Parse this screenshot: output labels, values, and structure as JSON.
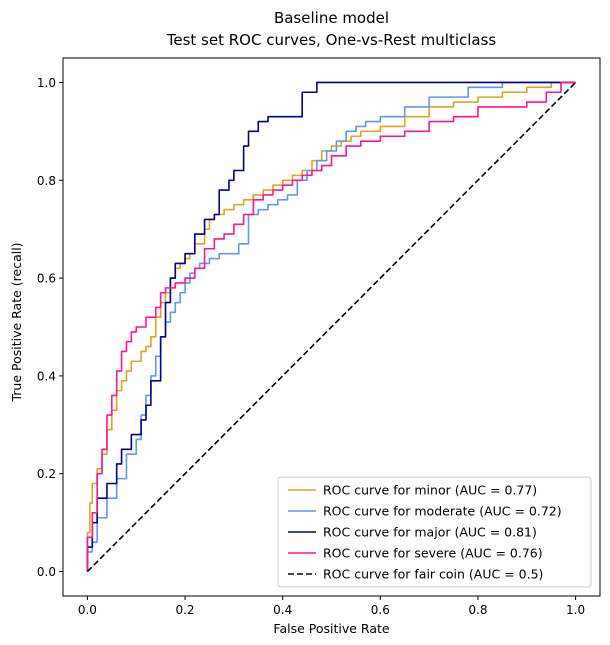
{
  "chart_data": {
    "type": "line",
    "title": "Baseline model",
    "subtitle": "Test set ROC curves, One-vs-Rest multiclass",
    "xlabel": "False Positive Rate",
    "ylabel": "True Positive Rate (recall)",
    "xlim": [
      -0.05,
      1.05
    ],
    "ylim": [
      -0.05,
      1.05
    ],
    "xticks": [
      0.0,
      0.2,
      0.4,
      0.6,
      0.8,
      1.0
    ],
    "yticks": [
      0.0,
      0.2,
      0.4,
      0.6,
      0.8,
      1.0
    ],
    "xtick_labels": [
      "0.0",
      "0.2",
      "0.4",
      "0.6",
      "0.8",
      "1.0"
    ],
    "ytick_labels": [
      "0.0",
      "0.2",
      "0.4",
      "0.6",
      "0.8",
      "1.0"
    ],
    "grid": false,
    "legend_position": "lower-right",
    "series": [
      {
        "name": "ROC curve for minor (AUC = 0.77)",
        "color": "#DAA520",
        "dash": "solid",
        "x": [
          0.0,
          0.0,
          0.005,
          0.005,
          0.01,
          0.01,
          0.02,
          0.02,
          0.03,
          0.03,
          0.04,
          0.04,
          0.05,
          0.05,
          0.06,
          0.06,
          0.07,
          0.07,
          0.08,
          0.08,
          0.09,
          0.09,
          0.1,
          0.1,
          0.11,
          0.11,
          0.12,
          0.12,
          0.13,
          0.13,
          0.14,
          0.14,
          0.15,
          0.15,
          0.16,
          0.16,
          0.17,
          0.17,
          0.18,
          0.18,
          0.19,
          0.19,
          0.2,
          0.2,
          0.21,
          0.21,
          0.22,
          0.22,
          0.24,
          0.24,
          0.25,
          0.25,
          0.26,
          0.26,
          0.28,
          0.28,
          0.3,
          0.3,
          0.32,
          0.32,
          0.34,
          0.34,
          0.36,
          0.36,
          0.38,
          0.38,
          0.4,
          0.4,
          0.42,
          0.42,
          0.44,
          0.44,
          0.46,
          0.46,
          0.48,
          0.48,
          0.5,
          0.5,
          0.52,
          0.52,
          0.54,
          0.54,
          0.56,
          0.56,
          0.58,
          0.58,
          0.6,
          0.6,
          0.65,
          0.65,
          0.7,
          0.7,
          0.75,
          0.75,
          0.8,
          0.8,
          0.85,
          0.85,
          0.9,
          0.9,
          0.95,
          0.95,
          1.0
        ],
        "y": [
          0.0,
          0.08,
          0.08,
          0.14,
          0.14,
          0.18,
          0.18,
          0.21,
          0.21,
          0.24,
          0.24,
          0.29,
          0.29,
          0.33,
          0.33,
          0.37,
          0.37,
          0.39,
          0.39,
          0.41,
          0.41,
          0.43,
          0.43,
          0.43,
          0.43,
          0.45,
          0.45,
          0.46,
          0.46,
          0.48,
          0.48,
          0.52,
          0.52,
          0.55,
          0.55,
          0.57,
          0.57,
          0.6,
          0.6,
          0.62,
          0.62,
          0.63,
          0.63,
          0.64,
          0.64,
          0.65,
          0.65,
          0.67,
          0.67,
          0.7,
          0.7,
          0.72,
          0.72,
          0.73,
          0.73,
          0.74,
          0.74,
          0.75,
          0.75,
          0.76,
          0.76,
          0.77,
          0.77,
          0.78,
          0.78,
          0.79,
          0.79,
          0.8,
          0.8,
          0.81,
          0.81,
          0.82,
          0.82,
          0.84,
          0.84,
          0.86,
          0.86,
          0.87,
          0.87,
          0.88,
          0.88,
          0.89,
          0.89,
          0.9,
          0.9,
          0.9,
          0.9,
          0.91,
          0.91,
          0.93,
          0.93,
          0.95,
          0.95,
          0.96,
          0.96,
          0.97,
          0.97,
          0.98,
          0.98,
          0.99,
          0.99,
          1.0,
          1.0
        ]
      },
      {
        "name": "ROC curve for moderate (AUC = 0.72)",
        "color": "#6495ED",
        "dash": "solid",
        "x": [
          0.0,
          0.0,
          0.01,
          0.01,
          0.02,
          0.02,
          0.04,
          0.04,
          0.06,
          0.06,
          0.08,
          0.08,
          0.1,
          0.1,
          0.11,
          0.11,
          0.12,
          0.12,
          0.13,
          0.13,
          0.14,
          0.14,
          0.15,
          0.15,
          0.16,
          0.16,
          0.17,
          0.17,
          0.18,
          0.18,
          0.19,
          0.19,
          0.2,
          0.2,
          0.21,
          0.21,
          0.22,
          0.22,
          0.23,
          0.23,
          0.25,
          0.25,
          0.27,
          0.27,
          0.29,
          0.29,
          0.31,
          0.31,
          0.33,
          0.33,
          0.35,
          0.35,
          0.37,
          0.37,
          0.39,
          0.39,
          0.41,
          0.41,
          0.43,
          0.43,
          0.45,
          0.45,
          0.47,
          0.47,
          0.49,
          0.49,
          0.51,
          0.51,
          0.53,
          0.53,
          0.55,
          0.55,
          0.57,
          0.57,
          0.6,
          0.6,
          0.65,
          0.65,
          0.7,
          0.7,
          0.78,
          0.78,
          0.85,
          0.85,
          0.92,
          0.92,
          1.0
        ],
        "y": [
          0.0,
          0.04,
          0.04,
          0.06,
          0.06,
          0.11,
          0.11,
          0.15,
          0.15,
          0.19,
          0.19,
          0.24,
          0.24,
          0.27,
          0.27,
          0.32,
          0.32,
          0.36,
          0.36,
          0.4,
          0.4,
          0.44,
          0.44,
          0.48,
          0.48,
          0.51,
          0.51,
          0.53,
          0.53,
          0.55,
          0.55,
          0.57,
          0.57,
          0.59,
          0.59,
          0.61,
          0.61,
          0.62,
          0.62,
          0.63,
          0.63,
          0.64,
          0.64,
          0.65,
          0.65,
          0.65,
          0.65,
          0.67,
          0.67,
          0.73,
          0.73,
          0.74,
          0.74,
          0.75,
          0.75,
          0.76,
          0.76,
          0.77,
          0.77,
          0.8,
          0.8,
          0.82,
          0.82,
          0.84,
          0.84,
          0.86,
          0.86,
          0.88,
          0.88,
          0.9,
          0.9,
          0.91,
          0.91,
          0.92,
          0.92,
          0.93,
          0.93,
          0.95,
          0.95,
          0.97,
          0.97,
          0.99,
          0.99,
          1.0,
          1.0,
          1.0,
          1.0
        ]
      },
      {
        "name": "ROC curve for major (AUC = 0.81)",
        "color": "#00008B",
        "dash": "solid",
        "x": [
          0.0,
          0.0,
          0.01,
          0.01,
          0.02,
          0.02,
          0.04,
          0.04,
          0.06,
          0.06,
          0.07,
          0.07,
          0.09,
          0.09,
          0.11,
          0.11,
          0.12,
          0.12,
          0.13,
          0.13,
          0.15,
          0.15,
          0.16,
          0.16,
          0.17,
          0.17,
          0.18,
          0.18,
          0.2,
          0.2,
          0.22,
          0.22,
          0.24,
          0.24,
          0.26,
          0.26,
          0.27,
          0.27,
          0.29,
          0.29,
          0.3,
          0.3,
          0.32,
          0.32,
          0.33,
          0.33,
          0.35,
          0.35,
          0.37,
          0.37,
          0.39,
          0.39,
          0.44,
          0.44,
          0.47,
          0.47,
          0.51,
          0.51,
          1.0
        ],
        "y": [
          0.0,
          0.05,
          0.05,
          0.1,
          0.1,
          0.15,
          0.15,
          0.18,
          0.18,
          0.22,
          0.22,
          0.25,
          0.25,
          0.28,
          0.28,
          0.31,
          0.31,
          0.34,
          0.34,
          0.39,
          0.39,
          0.48,
          0.48,
          0.55,
          0.55,
          0.6,
          0.6,
          0.63,
          0.63,
          0.65,
          0.65,
          0.69,
          0.69,
          0.72,
          0.72,
          0.73,
          0.73,
          0.78,
          0.78,
          0.8,
          0.8,
          0.82,
          0.82,
          0.87,
          0.87,
          0.9,
          0.9,
          0.92,
          0.92,
          0.93,
          0.93,
          0.93,
          0.93,
          0.98,
          0.98,
          1.0,
          1.0,
          1.0,
          1.0
        ]
      },
      {
        "name": "ROC curve for severe (AUC = 0.76)",
        "color": "#FF1493",
        "dash": "solid",
        "x": [
          0.0,
          0.0,
          0.01,
          0.01,
          0.02,
          0.02,
          0.03,
          0.03,
          0.04,
          0.04,
          0.05,
          0.05,
          0.06,
          0.06,
          0.07,
          0.07,
          0.08,
          0.08,
          0.09,
          0.09,
          0.1,
          0.1,
          0.12,
          0.12,
          0.14,
          0.14,
          0.15,
          0.15,
          0.16,
          0.16,
          0.18,
          0.18,
          0.2,
          0.2,
          0.22,
          0.22,
          0.24,
          0.24,
          0.26,
          0.26,
          0.28,
          0.28,
          0.3,
          0.3,
          0.32,
          0.32,
          0.34,
          0.34,
          0.36,
          0.36,
          0.38,
          0.38,
          0.4,
          0.4,
          0.42,
          0.42,
          0.44,
          0.44,
          0.46,
          0.46,
          0.48,
          0.48,
          0.5,
          0.5,
          0.53,
          0.53,
          0.56,
          0.56,
          0.6,
          0.6,
          0.65,
          0.65,
          0.7,
          0.7,
          0.75,
          0.75,
          0.8,
          0.8,
          0.85,
          0.85,
          0.9,
          0.9,
          0.94,
          0.94,
          0.97,
          0.97,
          1.0
        ],
        "y": [
          0.0,
          0.07,
          0.07,
          0.12,
          0.12,
          0.2,
          0.2,
          0.25,
          0.25,
          0.32,
          0.32,
          0.36,
          0.36,
          0.41,
          0.41,
          0.45,
          0.45,
          0.47,
          0.47,
          0.49,
          0.49,
          0.5,
          0.5,
          0.52,
          0.52,
          0.54,
          0.54,
          0.57,
          0.57,
          0.58,
          0.58,
          0.59,
          0.59,
          0.6,
          0.6,
          0.62,
          0.62,
          0.66,
          0.66,
          0.68,
          0.68,
          0.69,
          0.69,
          0.71,
          0.71,
          0.73,
          0.73,
          0.76,
          0.76,
          0.77,
          0.77,
          0.78,
          0.78,
          0.79,
          0.79,
          0.8,
          0.8,
          0.81,
          0.81,
          0.82,
          0.82,
          0.83,
          0.83,
          0.85,
          0.85,
          0.87,
          0.87,
          0.88,
          0.88,
          0.89,
          0.89,
          0.9,
          0.9,
          0.92,
          0.92,
          0.93,
          0.93,
          0.95,
          0.95,
          0.95,
          0.95,
          0.96,
          0.96,
          0.98,
          0.98,
          1.0,
          1.0
        ]
      },
      {
        "name": "ROC curve for fair coin (AUC = 0.5)",
        "color": "#000000",
        "dash": "dashed",
        "x": [
          0.0,
          1.0
        ],
        "y": [
          0.0,
          1.0
        ]
      }
    ]
  }
}
